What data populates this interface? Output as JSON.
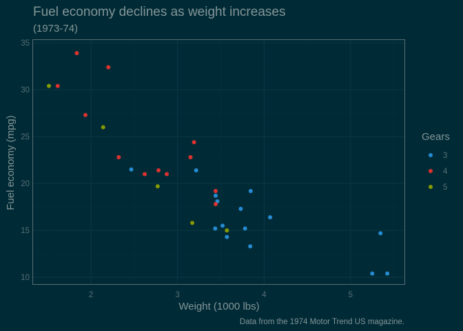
{
  "chart_data": {
    "type": "scatter",
    "title": "Fuel economy declines as weight increases",
    "subtitle": "(1973-74)",
    "xlabel": "Weight (1000 lbs)",
    "ylabel": "Fuel economy (mpg)",
    "caption": "Data from the 1974 Motor Trend US magazine.",
    "xlim": [
      1.33,
      5.63
    ],
    "ylim": [
      9.2,
      35.3
    ],
    "xticks": [
      2,
      3,
      4,
      5
    ],
    "yticks": [
      10,
      15,
      20,
      25,
      30,
      35
    ],
    "grid": true,
    "legend": {
      "title": "Gears",
      "position": "right"
    },
    "colors": {
      "3": "#268bd2",
      "4": "#dc322f",
      "5": "#859900"
    },
    "series": [
      {
        "name": "3",
        "points": [
          [
            2.465,
            21.5
          ],
          [
            3.215,
            21.4
          ],
          [
            3.44,
            18.7
          ],
          [
            3.46,
            18.1
          ],
          [
            3.57,
            14.3
          ],
          [
            4.07,
            16.4
          ],
          [
            3.73,
            17.3
          ],
          [
            3.78,
            15.2
          ],
          [
            5.25,
            10.4
          ],
          [
            5.424,
            10.4
          ],
          [
            5.345,
            14.7
          ],
          [
            3.52,
            15.5
          ],
          [
            3.435,
            15.2
          ],
          [
            3.84,
            13.3
          ],
          [
            3.845,
            19.2
          ]
        ]
      },
      {
        "name": "4",
        "points": [
          [
            2.62,
            21.0
          ],
          [
            2.875,
            21.0
          ],
          [
            2.32,
            22.8
          ],
          [
            3.19,
            24.4
          ],
          [
            3.15,
            22.8
          ],
          [
            3.44,
            19.2
          ],
          [
            3.44,
            17.8
          ],
          [
            2.2,
            32.4
          ],
          [
            1.615,
            30.4
          ],
          [
            1.835,
            33.9
          ],
          [
            1.935,
            27.3
          ],
          [
            2.78,
            21.4
          ]
        ]
      },
      {
        "name": "5",
        "points": [
          [
            2.14,
            26.0
          ],
          [
            1.513,
            30.4
          ],
          [
            3.17,
            15.8
          ],
          [
            2.77,
            19.7
          ],
          [
            3.57,
            15.0
          ]
        ]
      }
    ]
  }
}
